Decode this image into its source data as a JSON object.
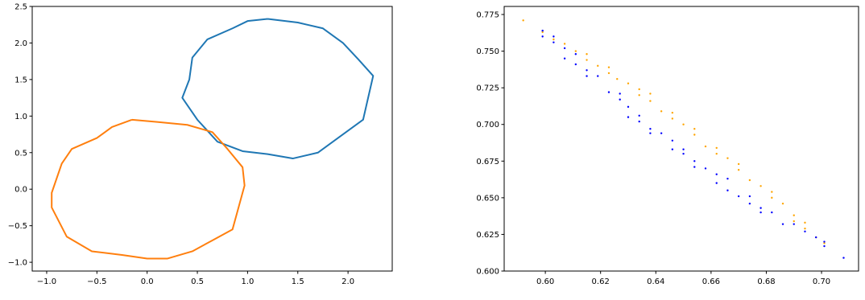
{
  "chart_data": [
    {
      "type": "line",
      "xlim": [
        -1.144,
        2.44
      ],
      "ylim": [
        -1.12,
        2.5
      ],
      "xticks": [
        {
          "value": -1.0,
          "label": "−1.0"
        },
        {
          "value": -0.5,
          "label": "−0.5"
        },
        {
          "value": 0.0,
          "label": "0.0"
        },
        {
          "value": 0.5,
          "label": "0.5"
        },
        {
          "value": 1.0,
          "label": "1.0"
        },
        {
          "value": 1.5,
          "label": "1.5"
        },
        {
          "value": 2.0,
          "label": "2.0"
        }
      ],
      "yticks": [
        {
          "value": -1.0,
          "label": "−1.0"
        },
        {
          "value": -0.5,
          "label": "−0.5"
        },
        {
          "value": 0.0,
          "label": "0.0"
        },
        {
          "value": 0.5,
          "label": "0.5"
        },
        {
          "value": 1.0,
          "label": "1.0"
        },
        {
          "value": 1.5,
          "label": "1.5"
        },
        {
          "value": 2.0,
          "label": "2.0"
        },
        {
          "value": 2.5,
          "label": "2.5"
        }
      ],
      "series": [
        {
          "color": "#1f77b4",
          "x": [
            1.2,
            1.5,
            1.75,
            1.95,
            2.1,
            2.25,
            2.2,
            2.15,
            1.9,
            1.7,
            1.45,
            1.2,
            0.95,
            0.7,
            0.5,
            0.35,
            0.42,
            0.45,
            0.6,
            0.85,
            1.0,
            1.2
          ],
          "values": [
            2.33,
            2.28,
            2.2,
            2.0,
            1.78,
            1.55,
            1.25,
            0.95,
            0.7,
            0.5,
            0.42,
            0.48,
            0.52,
            0.65,
            0.95,
            1.25,
            1.5,
            1.8,
            2.05,
            2.2,
            2.3,
            2.33
          ]
        },
        {
          "color": "#ff7f0e",
          "x": [
            -0.15,
            0.1,
            0.4,
            0.65,
            0.8,
            0.95,
            0.97,
            0.9,
            0.85,
            0.65,
            0.45,
            0.2,
            0.0,
            -0.25,
            -0.55,
            -0.8,
            -0.95,
            -0.95,
            -0.85,
            -0.75,
            -0.5,
            -0.35,
            -0.15
          ],
          "values": [
            0.95,
            0.92,
            0.88,
            0.78,
            0.55,
            0.3,
            0.05,
            -0.3,
            -0.55,
            -0.7,
            -0.85,
            -0.95,
            -0.95,
            -0.9,
            -0.85,
            -0.65,
            -0.25,
            -0.05,
            0.35,
            0.55,
            0.7,
            0.85,
            0.95
          ]
        }
      ]
    },
    {
      "type": "scatter",
      "xlim": [
        0.5851,
        0.7134
      ],
      "ylim": [
        0.6,
        0.7805
      ],
      "xticks": [
        {
          "value": 0.6,
          "label": "0.60"
        },
        {
          "value": 0.62,
          "label": "0.62"
        },
        {
          "value": 0.64,
          "label": "0.64"
        },
        {
          "value": 0.66,
          "label": "0.66"
        },
        {
          "value": 0.68,
          "label": "0.68"
        },
        {
          "value": 0.7,
          "label": "0.70"
        }
      ],
      "yticks": [
        {
          "value": 0.6,
          "label": "0.600"
        },
        {
          "value": 0.625,
          "label": "0.625"
        },
        {
          "value": 0.65,
          "label": "0.650"
        },
        {
          "value": 0.675,
          "label": "0.675"
        },
        {
          "value": 0.7,
          "label": "0.700"
        },
        {
          "value": 0.725,
          "label": "0.725"
        },
        {
          "value": 0.75,
          "label": "0.750"
        },
        {
          "value": 0.775,
          "label": "0.775"
        }
      ],
      "series": [
        {
          "color": "#ffa500",
          "x": [
            0.592,
            0.599,
            0.603,
            0.607,
            0.611,
            0.615,
            0.615,
            0.619,
            0.623,
            0.623,
            0.626,
            0.63,
            0.634,
            0.634,
            0.638,
            0.638,
            0.642,
            0.646,
            0.646,
            0.65,
            0.654,
            0.654,
            0.658,
            0.662,
            0.662,
            0.666,
            0.67,
            0.67,
            0.674,
            0.678,
            0.682,
            0.682,
            0.686,
            0.69,
            0.69,
            0.694,
            0.694,
            0.698,
            0.701
          ],
          "values": [
            0.771,
            0.763,
            0.758,
            0.755,
            0.75,
            0.748,
            0.744,
            0.74,
            0.739,
            0.735,
            0.731,
            0.728,
            0.724,
            0.72,
            0.721,
            0.716,
            0.709,
            0.708,
            0.704,
            0.7,
            0.697,
            0.693,
            0.685,
            0.684,
            0.68,
            0.677,
            0.673,
            0.669,
            0.662,
            0.658,
            0.654,
            0.65,
            0.646,
            0.638,
            0.634,
            0.633,
            0.629,
            0.623,
            0.619
          ]
        },
        {
          "color": "#0000ff",
          "x": [
            0.599,
            0.599,
            0.603,
            0.603,
            0.607,
            0.607,
            0.611,
            0.611,
            0.615,
            0.615,
            0.619,
            0.623,
            0.627,
            0.627,
            0.63,
            0.63,
            0.634,
            0.634,
            0.638,
            0.638,
            0.642,
            0.646,
            0.646,
            0.65,
            0.65,
            0.654,
            0.654,
            0.658,
            0.662,
            0.662,
            0.666,
            0.666,
            0.67,
            0.674,
            0.674,
            0.678,
            0.678,
            0.682,
            0.686,
            0.69,
            0.694,
            0.698,
            0.701,
            0.701,
            0.708
          ],
          "values": [
            0.764,
            0.76,
            0.76,
            0.756,
            0.752,
            0.745,
            0.748,
            0.741,
            0.737,
            0.733,
            0.733,
            0.722,
            0.721,
            0.717,
            0.712,
            0.705,
            0.706,
            0.702,
            0.697,
            0.694,
            0.694,
            0.689,
            0.683,
            0.683,
            0.68,
            0.675,
            0.671,
            0.67,
            0.666,
            0.66,
            0.663,
            0.655,
            0.651,
            0.651,
            0.646,
            0.643,
            0.64,
            0.64,
            0.632,
            0.632,
            0.627,
            0.623,
            0.62,
            0.617,
            0.609
          ]
        }
      ]
    }
  ]
}
